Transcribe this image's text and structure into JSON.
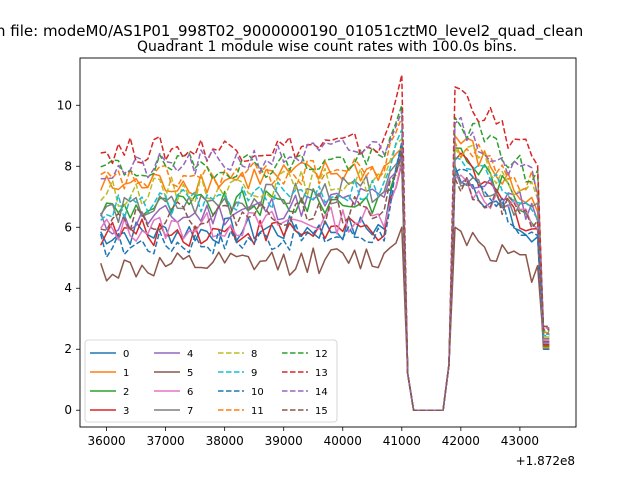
{
  "suptitle": "n file: modeM0/AS1P01_998T02_9000000190_01051cztM0_level2_quad_clean",
  "chart_data": {
    "type": "line",
    "title": "Quadrant 1 module wise count rates with 100.0s bins.",
    "xlabel": "",
    "ylabel": "",
    "x_offset_label": "+1.872e8",
    "xlim": [
      35550,
      43950
    ],
    "ylim": [
      -0.55,
      11.55
    ],
    "xticks": [
      36000,
      37000,
      38000,
      39000,
      40000,
      41000,
      42000,
      43000
    ],
    "xtick_labels": [
      "36000",
      "37000",
      "38000",
      "39000",
      "40000",
      "41000",
      "42000",
      "43000"
    ],
    "yticks": [
      0,
      2,
      4,
      6,
      8,
      10
    ],
    "ytick_labels": [
      "0",
      "2",
      "4",
      "6",
      "8",
      "10"
    ],
    "x_start": 35900,
    "x_step": 100,
    "gap_start": 41100,
    "gap_end": 41800,
    "legend_position": "lower-left",
    "series": [
      {
        "name": "0",
        "color": "#1f77b4",
        "dash": false,
        "base": 5.8,
        "slope": 0.2,
        "end": 8.7,
        "drop": 8.0,
        "tail": 5.2
      },
      {
        "name": "1",
        "color": "#ff7f0e",
        "dash": false,
        "base": 7.3,
        "slope": 0.6,
        "end": 8.6,
        "drop": 9.0,
        "tail": 6.4
      },
      {
        "name": "2",
        "color": "#2ca02c",
        "dash": false,
        "base": 6.6,
        "slope": 0.3,
        "end": 8.3,
        "drop": 8.6,
        "tail": 6.2
      },
      {
        "name": "3",
        "color": "#d62728",
        "dash": false,
        "base": 5.8,
        "slope": 0.1,
        "end": 8.1,
        "drop": 8.2,
        "tail": 5.7
      },
      {
        "name": "4",
        "color": "#9467bd",
        "dash": false,
        "base": 6.1,
        "slope": 0.9,
        "end": 8.4,
        "drop": 7.8,
        "tail": 6.4
      },
      {
        "name": "5",
        "color": "#8c564b",
        "dash": false,
        "base": 4.6,
        "slope": 0.4,
        "end": 6.0,
        "drop": 6.0,
        "tail": 4.4
      },
      {
        "name": "6",
        "color": "#e377c2",
        "dash": false,
        "base": 5.9,
        "slope": 0.4,
        "end": 8.2,
        "drop": 7.6,
        "tail": 6.0
      },
      {
        "name": "7",
        "color": "#7f7f7f",
        "dash": false,
        "base": 6.5,
        "slope": 0.8,
        "end": 8.0,
        "drop": 7.9,
        "tail": 6.3
      },
      {
        "name": "8",
        "color": "#bcbd22",
        "dash": true,
        "base": 7.1,
        "slope": 0.5,
        "end": 8.9,
        "drop": 8.6,
        "tail": 6.8
      },
      {
        "name": "9",
        "color": "#17becf",
        "dash": true,
        "base": 6.6,
        "slope": 0.7,
        "end": 9.2,
        "drop": 8.3,
        "tail": 6.5
      },
      {
        "name": "10",
        "color": "#1f77b4",
        "dash": true,
        "base": 5.4,
        "slope": 0.4,
        "end": 8.8,
        "drop": 7.8,
        "tail": 5.4
      },
      {
        "name": "11",
        "color": "#ff7f0e",
        "dash": true,
        "base": 7.5,
        "slope": 0.4,
        "end": 9.6,
        "drop": 8.8,
        "tail": 7.2
      },
      {
        "name": "12",
        "color": "#2ca02c",
        "dash": true,
        "base": 7.9,
        "slope": 0.3,
        "end": 10.0,
        "drop": 9.6,
        "tail": 7.4
      },
      {
        "name": "13",
        "color": "#d62728",
        "dash": true,
        "base": 8.5,
        "slope": 0.2,
        "end": 11.0,
        "drop": 10.6,
        "tail": 7.9
      },
      {
        "name": "14",
        "color": "#9467bd",
        "dash": true,
        "base": 7.8,
        "slope": 0.8,
        "end": 9.8,
        "drop": 9.4,
        "tail": 7.3
      },
      {
        "name": "15",
        "color": "#8c564b",
        "dash": true,
        "base": 6.3,
        "slope": 0.3,
        "end": 8.5,
        "drop": 7.6,
        "tail": 6.0
      }
    ]
  }
}
